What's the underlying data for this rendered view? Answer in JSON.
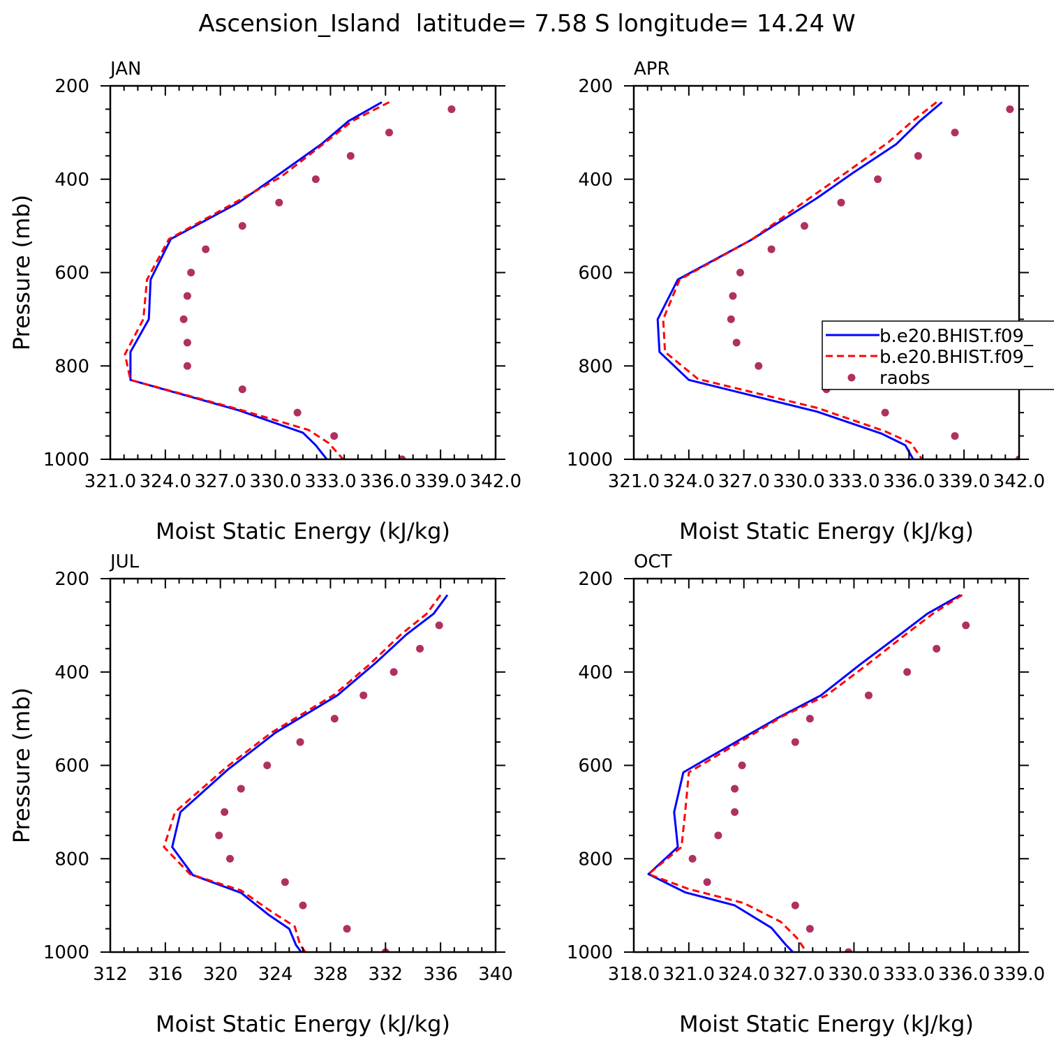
{
  "title": "Ascension_Island  latitude= 7.58 S longitude= 14.24 W",
  "legend": {
    "placement": "right of APR panel",
    "entries": [
      {
        "label": "b.e20.BHIST.f09_",
        "style": "solid",
        "color": "#0000ff"
      },
      {
        "label": "b.e20.BHIST.f09_",
        "style": "dashed",
        "color": "#ff0000"
      },
      {
        "label": "raobs",
        "style": "dot",
        "color": "#b03060"
      }
    ]
  },
  "chart_data": [
    {
      "type": "line",
      "panel": "JAN",
      "xlabel": "Moist Static Energy (kJ/kg)",
      "ylabel": "Pressure (mb)",
      "xlim": [
        321,
        342
      ],
      "xticks": [
        321,
        324,
        327,
        330,
        333,
        336,
        339,
        342
      ],
      "xtick_labels": [
        "321.0",
        "324.0",
        "327.0",
        "330.0",
        "333.0",
        "336.0",
        "339.0",
        "342.0"
      ],
      "ylim": [
        200,
        1000
      ],
      "yticks": [
        200,
        400,
        600,
        800,
        1000
      ],
      "ytick_labels": [
        "200",
        "400",
        "600",
        "800",
        "1000"
      ],
      "series": [
        {
          "values": [
            [
              335.8,
              235
            ],
            [
              334.0,
              275
            ],
            [
              332.5,
              325
            ],
            [
              330.0,
              395
            ],
            [
              328.0,
              450
            ],
            [
              324.3,
              528
            ],
            [
              323.2,
              615
            ],
            [
              323.1,
              700
            ],
            [
              322.1,
              770
            ],
            [
              322.1,
              830
            ],
            [
              328.0,
              895
            ],
            [
              331.5,
              943
            ],
            [
              332.2,
              970
            ],
            [
              332.9,
              1005
            ]
          ]
        },
        {
          "values": [
            [
              336.2,
              235
            ],
            [
              334.2,
              275
            ],
            [
              332.6,
              325
            ],
            [
              330.3,
              395
            ],
            [
              327.8,
              450
            ],
            [
              324.2,
              528
            ],
            [
              323.0,
              615
            ],
            [
              322.8,
              700
            ],
            [
              321.8,
              775
            ],
            [
              322.1,
              830
            ],
            [
              328.0,
              893
            ],
            [
              331.8,
              937
            ],
            [
              332.9,
              965
            ],
            [
              333.8,
              1005
            ]
          ]
        },
        {
          "values": [
            [
              339.6,
              250
            ],
            [
              336.2,
              300
            ],
            [
              334.1,
              350
            ],
            [
              332.2,
              400
            ],
            [
              330.2,
              450
            ],
            [
              328.2,
              500
            ],
            [
              326.2,
              550
            ],
            [
              325.4,
              600
            ],
            [
              325.2,
              650
            ],
            [
              325.0,
              700
            ],
            [
              325.2,
              750
            ],
            [
              325.2,
              800
            ],
            [
              328.2,
              850
            ],
            [
              331.2,
              900
            ],
            [
              333.2,
              950
            ],
            [
              336.9,
              1000
            ]
          ]
        }
      ]
    },
    {
      "type": "line",
      "panel": "APR",
      "xlabel": "Moist Static Energy (kJ/kg)",
      "ylabel": "",
      "xlim": [
        321,
        342
      ],
      "xticks": [
        321,
        324,
        327,
        330,
        333,
        336,
        339,
        342
      ],
      "xtick_labels": [
        "321.0",
        "324.0",
        "327.0",
        "330.0",
        "333.0",
        "336.0",
        "339.0",
        "342.0"
      ],
      "ylim": [
        200,
        1000
      ],
      "yticks": [
        200,
        400,
        600,
        800,
        1000
      ],
      "ytick_labels": [
        "200",
        "400",
        "600",
        "800",
        "1000"
      ],
      "series": [
        {
          "values": [
            [
              337.8,
              235
            ],
            [
              336.6,
              275
            ],
            [
              335.3,
              325
            ],
            [
              333.0,
              385
            ],
            [
              331.0,
              440
            ],
            [
              327.4,
              530
            ],
            [
              323.4,
              615
            ],
            [
              322.3,
              700
            ],
            [
              322.4,
              770
            ],
            [
              324.0,
              830
            ],
            [
              331.0,
              898
            ],
            [
              334.5,
              945
            ],
            [
              335.8,
              970
            ],
            [
              336.3,
              1005
            ]
          ]
        },
        {
          "values": [
            [
              337.5,
              235
            ],
            [
              336.2,
              275
            ],
            [
              334.9,
              320
            ],
            [
              332.6,
              385
            ],
            [
              330.6,
              440
            ],
            [
              327.4,
              530
            ],
            [
              323.5,
              615
            ],
            [
              322.6,
              700
            ],
            [
              322.7,
              770
            ],
            [
              324.5,
              828
            ],
            [
              331.0,
              890
            ],
            [
              334.7,
              940
            ],
            [
              336.1,
              965
            ],
            [
              336.8,
              1005
            ]
          ]
        },
        {
          "values": [
            [
              341.5,
              250
            ],
            [
              338.5,
              300
            ],
            [
              336.5,
              350
            ],
            [
              334.3,
              400
            ],
            [
              332.3,
              450
            ],
            [
              330.3,
              500
            ],
            [
              328.5,
              550
            ],
            [
              326.8,
              600
            ],
            [
              326.4,
              650
            ],
            [
              326.3,
              700
            ],
            [
              326.6,
              750
            ],
            [
              327.8,
              800
            ],
            [
              331.5,
              850
            ],
            [
              334.7,
              900
            ],
            [
              338.5,
              950
            ],
            [
              342.0,
              1000
            ]
          ]
        }
      ]
    },
    {
      "type": "line",
      "panel": "JUL",
      "xlabel": "Moist Static Energy (kJ/kg)",
      "ylabel": "Pressure (mb)",
      "xlim": [
        312,
        340
      ],
      "xticks": [
        312,
        316,
        320,
        324,
        328,
        332,
        336,
        340
      ],
      "xtick_labels": [
        "312",
        "316",
        "320",
        "324",
        "328",
        "332",
        "336",
        "340"
      ],
      "ylim": [
        200,
        1000
      ],
      "yticks": [
        200,
        400,
        600,
        800,
        1000
      ],
      "ytick_labels": [
        "200",
        "400",
        "600",
        "800",
        "1000"
      ],
      "series": [
        {
          "values": [
            [
              336.5,
              235
            ],
            [
              335.5,
              275
            ],
            [
              333.5,
              320
            ],
            [
              331.3,
              380
            ],
            [
              328.5,
              450
            ],
            [
              324.0,
              530
            ],
            [
              320.5,
              610
            ],
            [
              317.1,
              700
            ],
            [
              316.5,
              775
            ],
            [
              318.0,
              835
            ],
            [
              321.5,
              873
            ],
            [
              323.5,
              920
            ],
            [
              325.0,
              950
            ],
            [
              325.5,
              985
            ],
            [
              326.0,
              1005
            ]
          ]
        },
        {
          "values": [
            [
              336.0,
              235
            ],
            [
              335.0,
              275
            ],
            [
              333.1,
              320
            ],
            [
              330.8,
              385
            ],
            [
              328.3,
              448
            ],
            [
              323.7,
              530
            ],
            [
              320.4,
              605
            ],
            [
              316.7,
              700
            ],
            [
              315.9,
              775
            ],
            [
              317.8,
              833
            ],
            [
              321.5,
              868
            ],
            [
              323.8,
              915
            ],
            [
              325.4,
              945
            ],
            [
              325.8,
              985
            ],
            [
              326.3,
              1005
            ]
          ]
        },
        {
          "values": [
            [
              335.9,
              300
            ],
            [
              334.5,
              350
            ],
            [
              332.6,
              400
            ],
            [
              330.4,
              450
            ],
            [
              328.3,
              500
            ],
            [
              325.8,
              550
            ],
            [
              323.4,
              600
            ],
            [
              321.5,
              650
            ],
            [
              320.3,
              700
            ],
            [
              319.9,
              750
            ],
            [
              320.7,
              800
            ],
            [
              324.7,
              850
            ],
            [
              326.0,
              900
            ],
            [
              329.2,
              950
            ],
            [
              332.0,
              1000
            ]
          ]
        }
      ]
    },
    {
      "type": "line",
      "panel": "OCT",
      "xlabel": "Moist Static Energy (kJ/kg)",
      "ylabel": "",
      "xlim": [
        318,
        339
      ],
      "xticks": [
        318,
        321,
        324,
        327,
        330,
        333,
        336,
        339
      ],
      "xtick_labels": [
        "318.0",
        "321.0",
        "324.0",
        "327.0",
        "330.0",
        "333.0",
        "336.0",
        "339.0"
      ],
      "ylim": [
        200,
        1000
      ],
      "yticks": [
        200,
        400,
        600,
        800,
        1000
      ],
      "ytick_labels": [
        "200",
        "400",
        "600",
        "800",
        "1000"
      ],
      "series": [
        {
          "values": [
            [
              335.8,
              235
            ],
            [
              334.0,
              275
            ],
            [
              332.5,
              320
            ],
            [
              330.3,
              385
            ],
            [
              328.2,
              450
            ],
            [
              326.0,
              495
            ],
            [
              324.0,
              540
            ],
            [
              320.7,
              615
            ],
            [
              320.2,
              700
            ],
            [
              320.4,
              775
            ],
            [
              318.8,
              833
            ],
            [
              320.8,
              872
            ],
            [
              323.5,
              900
            ],
            [
              325.5,
              948
            ],
            [
              326.3,
              985
            ],
            [
              326.8,
              1005
            ]
          ]
        },
        {
          "values": [
            [
              335.9,
              235
            ],
            [
              334.3,
              275
            ],
            [
              332.8,
              320
            ],
            [
              330.7,
              385
            ],
            [
              328.5,
              450
            ],
            [
              326.1,
              495
            ],
            [
              324.0,
              545
            ],
            [
              321.0,
              615
            ],
            [
              320.8,
              700
            ],
            [
              320.6,
              775
            ],
            [
              318.8,
              833
            ],
            [
              321.0,
              865
            ],
            [
              324.0,
              895
            ],
            [
              326.0,
              935
            ],
            [
              326.9,
              970
            ],
            [
              327.5,
              1005
            ]
          ]
        },
        {
          "values": [
            [
              336.1,
              300
            ],
            [
              334.5,
              350
            ],
            [
              332.9,
              400
            ],
            [
              330.8,
              450
            ],
            [
              327.6,
              500
            ],
            [
              326.8,
              550
            ],
            [
              323.9,
              600
            ],
            [
              323.5,
              650
            ],
            [
              323.5,
              700
            ],
            [
              322.6,
              750
            ],
            [
              321.2,
              800
            ],
            [
              322.0,
              850
            ],
            [
              326.8,
              900
            ],
            [
              327.6,
              950
            ],
            [
              329.7,
              1000
            ]
          ]
        }
      ]
    }
  ]
}
